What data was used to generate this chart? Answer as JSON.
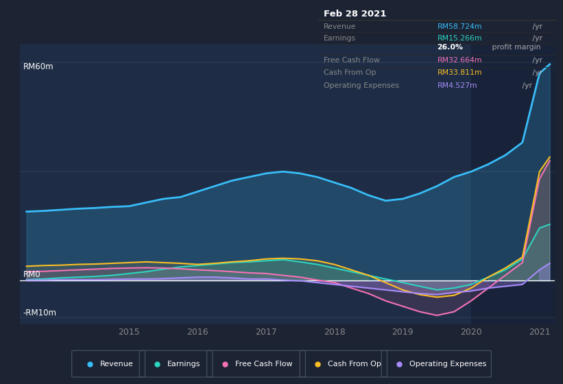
{
  "background_color": "#1c2333",
  "plot_bg_color": "#1e2d45",
  "highlight_bg_color": "#162035",
  "title_box_bg": "#0a0a0a",
  "ylabel_top": "RM60m",
  "ylabel_zero": "RM0",
  "ylabel_bot": "-RM10m",
  "title_box": {
    "date": "Feb 28 2021",
    "rows": [
      {
        "label": "Revenue",
        "value": "RM58.724m",
        "unit": " /yr",
        "value_color": "#38bdf8"
      },
      {
        "label": "Earnings",
        "value": "RM15.266m",
        "unit": " /yr",
        "value_color": "#2dd4bf"
      },
      {
        "label": "",
        "value": "26.0%",
        "unit": " profit margin",
        "value_color": "#ffffff",
        "bold": true
      },
      {
        "label": "Free Cash Flow",
        "value": "RM32.664m",
        "unit": " /yr",
        "value_color": "#f472b6"
      },
      {
        "label": "Cash From Op",
        "value": "RM33.811m",
        "unit": " /yr",
        "value_color": "#fbbf24"
      },
      {
        "label": "Operating Expenses",
        "value": "RM4.527m",
        "unit": " /yr",
        "value_color": "#a78bfa"
      }
    ]
  },
  "legend": [
    {
      "label": "Revenue",
      "color": "#38bdf8"
    },
    {
      "label": "Earnings",
      "color": "#2dd4bf"
    },
    {
      "label": "Free Cash Flow",
      "color": "#f472b6"
    },
    {
      "label": "Cash From Op",
      "color": "#fbbf24"
    },
    {
      "label": "Operating Expenses",
      "color": "#a78bfa"
    }
  ],
  "series": {
    "x": [
      2013.5,
      2013.75,
      2014.0,
      2014.25,
      2014.5,
      2014.75,
      2015.0,
      2015.25,
      2015.5,
      2015.75,
      2016.0,
      2016.25,
      2016.5,
      2016.75,
      2017.0,
      2017.25,
      2017.5,
      2017.75,
      2018.0,
      2018.25,
      2018.5,
      2018.75,
      2019.0,
      2019.25,
      2019.5,
      2019.75,
      2020.0,
      2020.25,
      2020.5,
      2020.75,
      2021.0,
      2021.15
    ],
    "revenue": [
      19,
      19.2,
      19.5,
      19.8,
      20.0,
      20.3,
      20.5,
      21.5,
      22.5,
      23.0,
      24.5,
      26.0,
      27.5,
      28.5,
      29.5,
      30.0,
      29.5,
      28.5,
      27.0,
      25.5,
      23.5,
      22.0,
      22.5,
      24.0,
      26.0,
      28.5,
      30.0,
      32.0,
      34.5,
      38.0,
      57.0,
      59.5
    ],
    "earnings": [
      0.3,
      0.5,
      0.8,
      1.0,
      1.2,
      1.5,
      2.0,
      2.5,
      3.2,
      3.8,
      4.2,
      4.6,
      5.0,
      5.2,
      5.5,
      5.8,
      5.2,
      4.5,
      3.5,
      2.5,
      1.5,
      0.5,
      -0.5,
      -1.5,
      -2.5,
      -2.0,
      -1.0,
      1.0,
      3.0,
      6.0,
      14.5,
      15.5
    ],
    "free_cash_flow": [
      2.5,
      2.6,
      2.8,
      3.0,
      3.2,
      3.4,
      3.5,
      3.6,
      3.5,
      3.3,
      3.0,
      2.8,
      2.5,
      2.2,
      2.0,
      1.5,
      1.0,
      0.2,
      -0.5,
      -2.0,
      -3.5,
      -5.5,
      -7.0,
      -8.5,
      -9.5,
      -8.5,
      -5.5,
      -2.0,
      1.5,
      5.0,
      28.0,
      33.0
    ],
    "cash_from_op": [
      4.0,
      4.2,
      4.3,
      4.5,
      4.6,
      4.8,
      5.0,
      5.2,
      5.0,
      4.8,
      4.5,
      4.8,
      5.2,
      5.5,
      6.0,
      6.2,
      6.0,
      5.5,
      4.5,
      3.0,
      1.5,
      -0.5,
      -2.5,
      -3.8,
      -4.5,
      -4.0,
      -2.0,
      1.0,
      3.5,
      6.5,
      30.0,
      34.0
    ],
    "op_expenses": [
      0.2,
      0.2,
      0.3,
      0.3,
      0.3,
      0.4,
      0.5,
      0.5,
      0.6,
      0.8,
      1.0,
      1.0,
      0.8,
      0.5,
      0.5,
      0.2,
      0.0,
      -0.5,
      -1.0,
      -1.5,
      -2.0,
      -2.5,
      -3.0,
      -3.5,
      -3.8,
      -3.2,
      -2.8,
      -2.0,
      -1.5,
      -1.0,
      3.0,
      4.8
    ]
  },
  "highlight_x_start": 2020.0,
  "ylim": [
    -12,
    65
  ],
  "xlim": [
    2013.4,
    2021.22
  ]
}
